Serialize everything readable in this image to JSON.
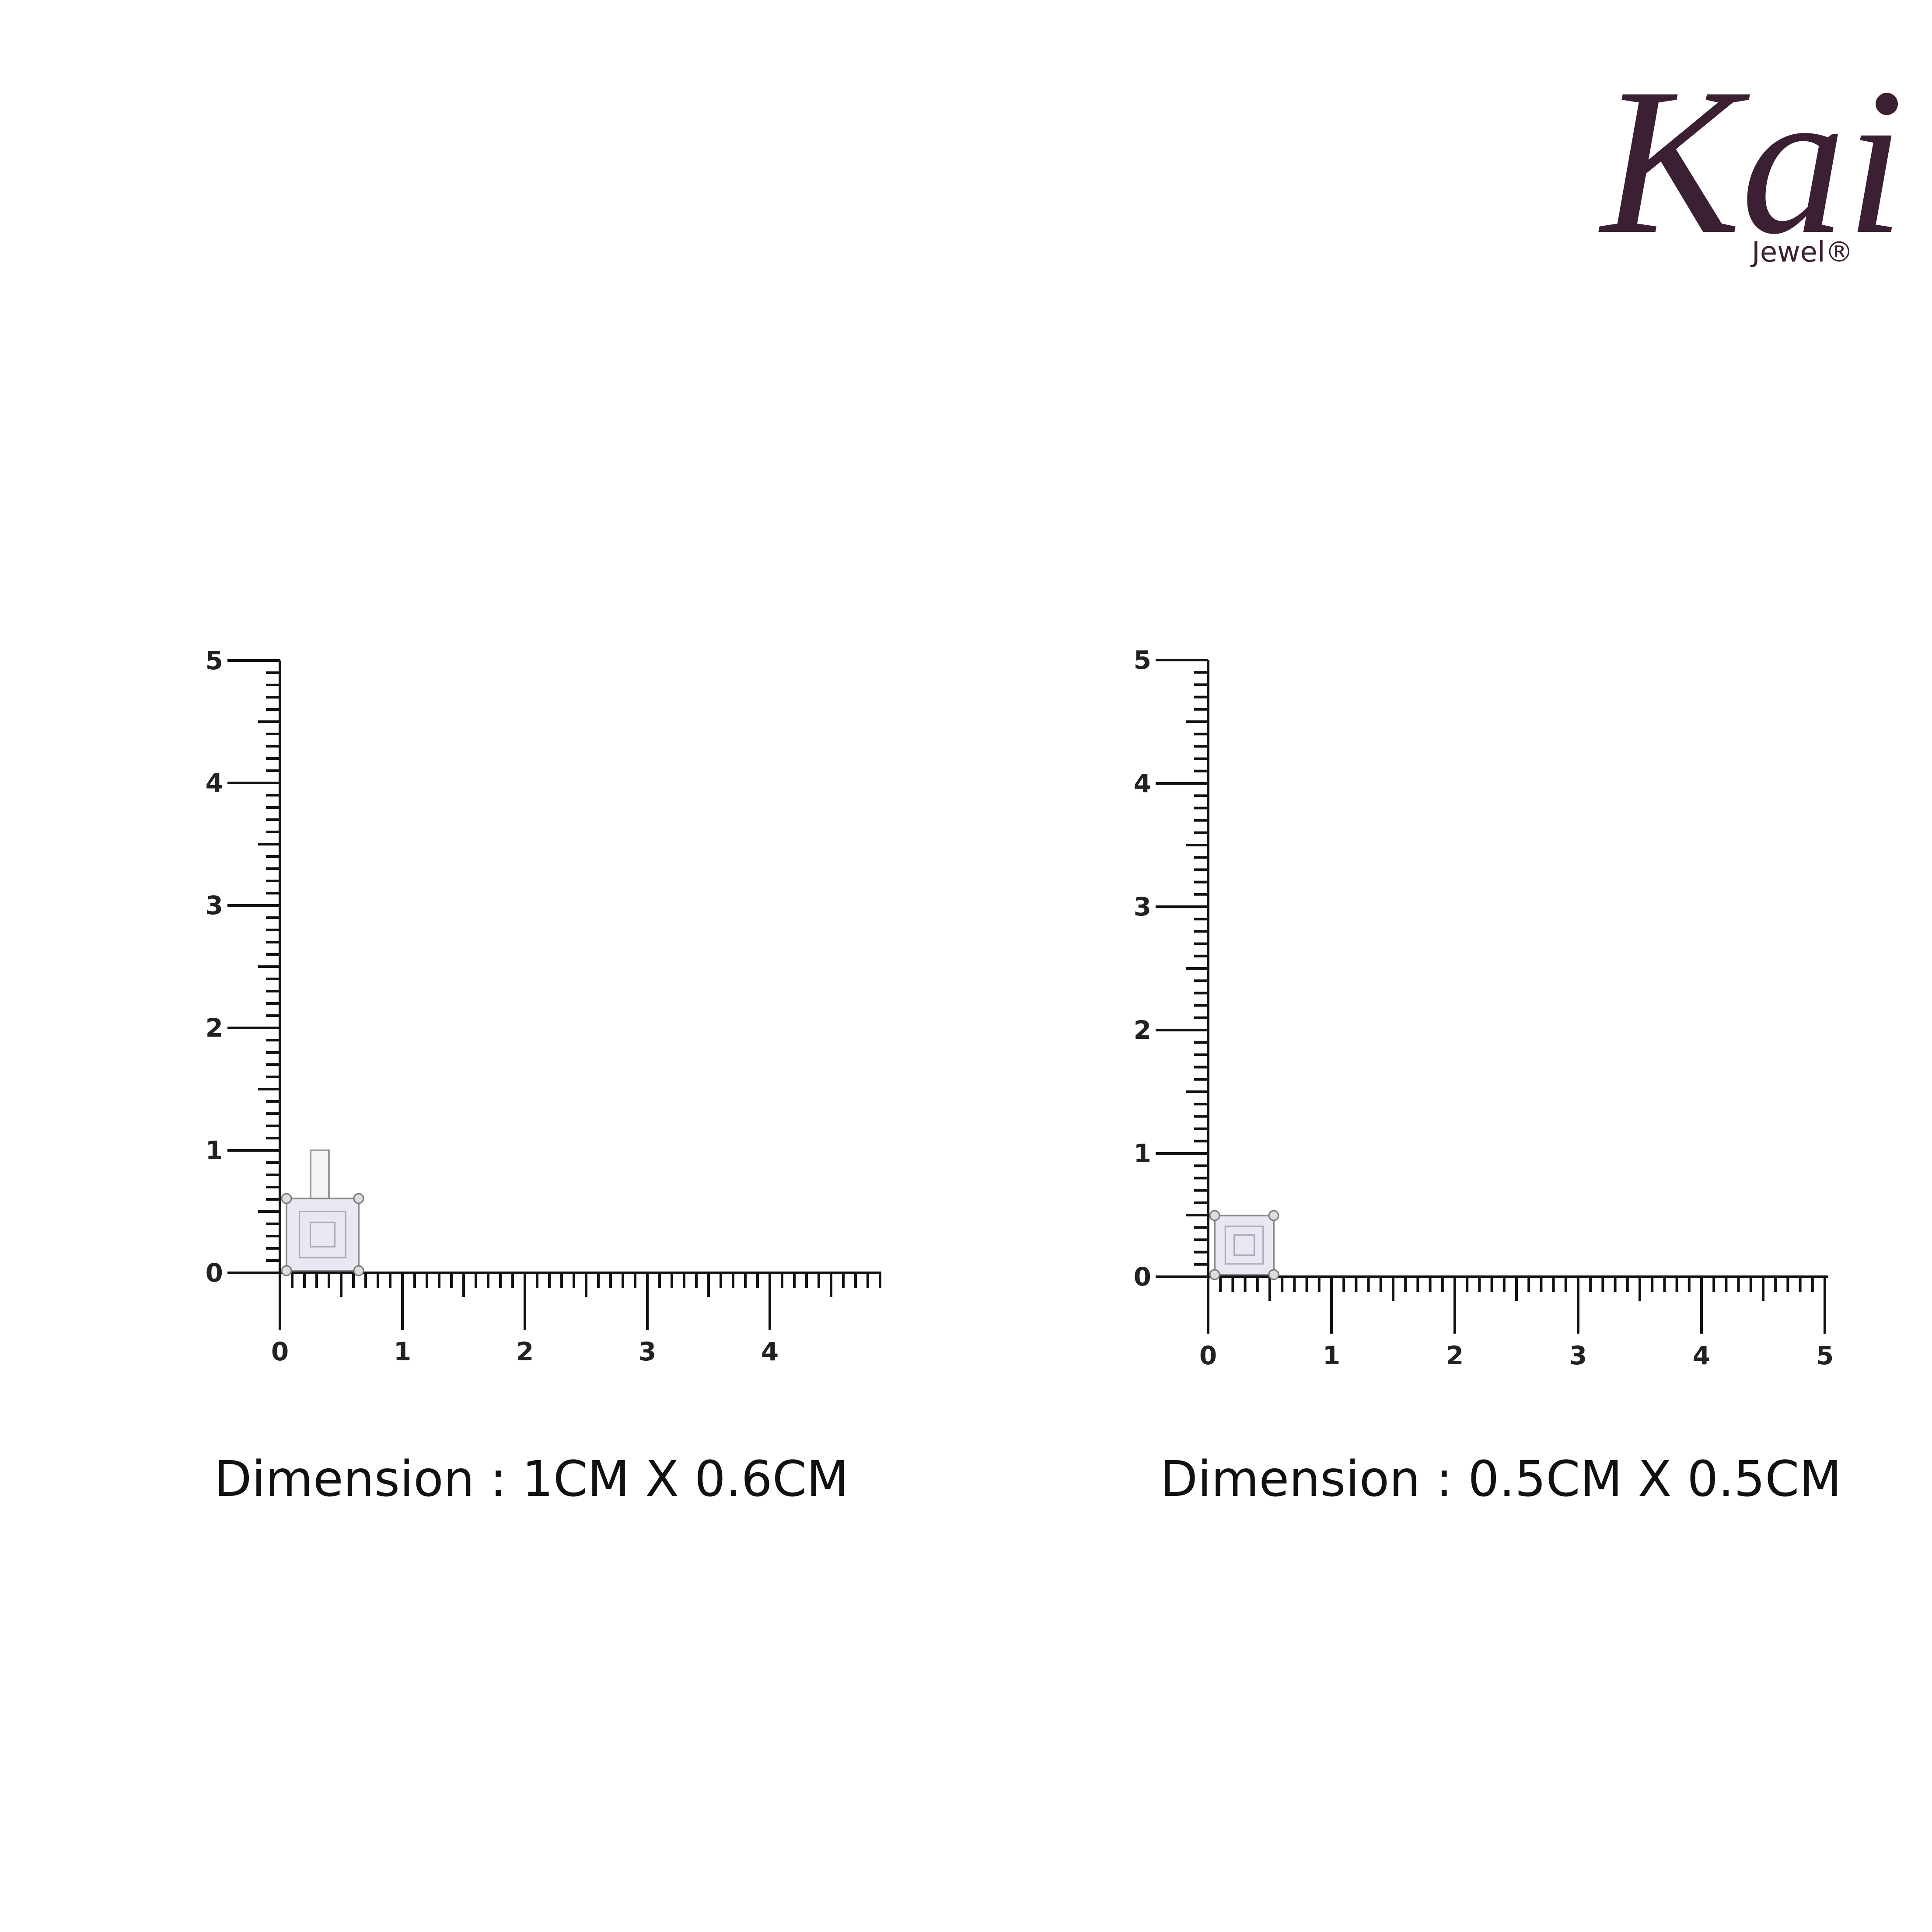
{
  "logo": {
    "brand": "Kai",
    "sub": "Jewel®"
  },
  "panels": [
    {
      "y_labels": [
        "0",
        "1",
        "2",
        "3",
        "4",
        "5"
      ],
      "x_labels": [
        "0",
        "1",
        "2",
        "3",
        "4"
      ],
      "caption": "Dimension : 1CM X 0.6CM"
    },
    {
      "y_labels": [
        "0",
        "1",
        "2",
        "3",
        "4",
        "5"
      ],
      "x_labels": [
        "0",
        "1",
        "2",
        "3",
        "4",
        "5"
      ],
      "caption": "Dimension : 0.5CM X 0.5CM"
    }
  ]
}
